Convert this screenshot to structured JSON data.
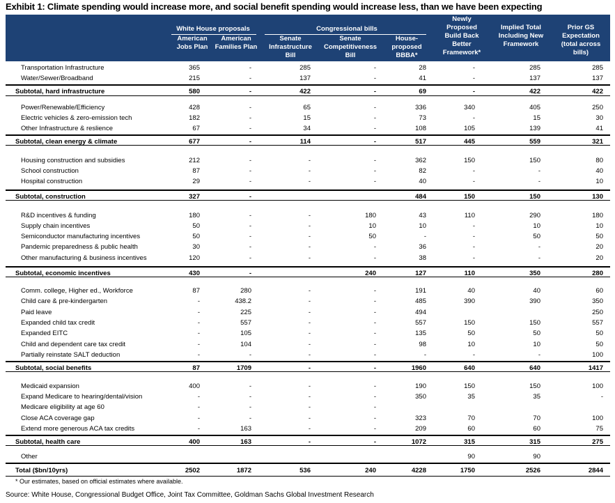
{
  "title": "Exhibit 1: Climate spending would increase more, and social benefit spending would increase less, than we have been expecting",
  "header": {
    "group_wh": "White House proposals",
    "group_cong": "Congressional bills",
    "cols": [
      "American Jobs Plan",
      "American Families Plan",
      "Senate Infrastructure Bill",
      "Senate Competitiveness Bill",
      "House-proposed BBBA*",
      "Newly Proposed Build Back Better Framework*",
      "Implied Total Including New Framework",
      "Prior GS Expectation (total across bills)"
    ]
  },
  "rows": [
    {
      "label": "Transportation Infrastructure",
      "v": [
        "365",
        "-",
        "285",
        "-",
        "28",
        "-",
        "285",
        "285"
      ]
    },
    {
      "label": "Water/Sewer/Broadband",
      "v": [
        "215",
        "-",
        "137",
        "-",
        "41",
        "-",
        "137",
        "137"
      ]
    },
    {
      "label": "Subtotal, hard infrastructure",
      "sub": true,
      "v": [
        "580",
        "-",
        "422",
        "-",
        "69",
        "-",
        "422",
        "422"
      ]
    },
    {
      "label": "Power/Renewable/Efficiency",
      "v": [
        "428",
        "-",
        "65",
        "-",
        "336",
        "340",
        "405",
        "250"
      ]
    },
    {
      "label": "Electric vehicles & zero-emission tech",
      "v": [
        "182",
        "-",
        "15",
        "-",
        "73",
        "-",
        "15",
        "30"
      ]
    },
    {
      "label": "Other Infrastructure & reslience",
      "v": [
        "67",
        "-",
        "34",
        "-",
        "108",
        "105",
        "139",
        "41"
      ]
    },
    {
      "label": "Subtotal, clean energy & climate",
      "sub": true,
      "v": [
        "677",
        "-",
        "114",
        "-",
        "517",
        "445",
        "559",
        "321"
      ]
    },
    {
      "label": "Housing construction and subsidies",
      "v": [
        "212",
        "-",
        "-",
        "-",
        "362",
        "150",
        "150",
        "80"
      ]
    },
    {
      "label": "School construction",
      "v": [
        "87",
        "-",
        "-",
        "-",
        "82",
        "-",
        "-",
        "40"
      ]
    },
    {
      "label": "Hospital construction",
      "v": [
        "29",
        "-",
        "-",
        "-",
        "40",
        "-",
        "-",
        "10"
      ]
    },
    {
      "label": "Subtotal, construction",
      "sub": true,
      "v": [
        "327",
        "-",
        "",
        "",
        "484",
        "150",
        "150",
        "130"
      ]
    },
    {
      "label": "R&D incentives & funding",
      "v": [
        "180",
        "-",
        "-",
        "180",
        "43",
        "110",
        "290",
        "180"
      ]
    },
    {
      "label": "Supply chain incentives",
      "v": [
        "50",
        "-",
        "-",
        "10",
        "10",
        "-",
        "10",
        "10"
      ]
    },
    {
      "label": "Semiconductor manufacturing incentives",
      "v": [
        "50",
        "-",
        "-",
        "50",
        "-",
        "-",
        "50",
        "50"
      ]
    },
    {
      "label": "Pandemic preparedness & public health",
      "v": [
        "30",
        "-",
        "-",
        "-",
        "36",
        "-",
        "-",
        "20"
      ]
    },
    {
      "label": "Other manufacturing & business incentives",
      "v": [
        "120",
        "-",
        "-",
        "-",
        "38",
        "-",
        "-",
        "20"
      ]
    },
    {
      "label": "Subtotal, economic incentives",
      "sub": true,
      "v": [
        "430",
        "-",
        "",
        "240",
        "127",
        "110",
        "350",
        "280"
      ]
    },
    {
      "label": "Comm. college, Higher ed., Workforce",
      "v": [
        "87",
        "280",
        "-",
        "-",
        "191",
        "40",
        "40",
        "60"
      ]
    },
    {
      "label": "Child care & pre-kindergarten",
      "v": [
        "-",
        "438.2",
        "-",
        "-",
        "485",
        "390",
        "390",
        "350"
      ]
    },
    {
      "label": "Paid leave",
      "v": [
        "-",
        "225",
        "-",
        "-",
        "494",
        "",
        "",
        "250"
      ]
    },
    {
      "label": "Expanded child tax credit",
      "v": [
        "-",
        "557",
        "-",
        "-",
        "557",
        "150",
        "150",
        "557"
      ]
    },
    {
      "label": "Expanded EITC",
      "v": [
        "-",
        "105",
        "-",
        "-",
        "135",
        "50",
        "50",
        "50"
      ]
    },
    {
      "label": "Child and dependent care tax credit",
      "v": [
        "-",
        "104",
        "-",
        "-",
        "98",
        "10",
        "10",
        "50"
      ]
    },
    {
      "label": "Partially reinstate SALT deduction",
      "v": [
        "-",
        "-",
        "-",
        "-",
        "-",
        "-",
        "-",
        "100"
      ]
    },
    {
      "label": "Subtotal, social benefits",
      "sub": true,
      "v": [
        "87",
        "1709",
        "-",
        "-",
        "1960",
        "640",
        "640",
        "1417"
      ]
    },
    {
      "label": "Medicaid expansion",
      "v": [
        "400",
        "-",
        "-",
        "-",
        "190",
        "150",
        "150",
        "100"
      ]
    },
    {
      "label": "Expand Medicare to hearing/dental/vision",
      "v": [
        "-",
        "-",
        "-",
        "-",
        "350",
        "35",
        "35",
        "-"
      ]
    },
    {
      "label": "Medicare eligibility at age 60",
      "v": [
        "-",
        "-",
        "-",
        "-",
        "",
        "",
        "",
        ""
      ]
    },
    {
      "label": "Close ACA coverage gap",
      "v": [
        "-",
        "-",
        "-",
        "-",
        "323",
        "70",
        "70",
        "100"
      ]
    },
    {
      "label": "Extend more generous ACA tax credits",
      "v": [
        "-",
        "163",
        "-",
        "-",
        "209",
        "60",
        "60",
        "75"
      ]
    },
    {
      "label": "Subtotal, health care",
      "sub": true,
      "v": [
        "400",
        "163",
        "-",
        "-",
        "1072",
        "315",
        "315",
        "275"
      ]
    },
    {
      "label": "Other",
      "v": [
        "",
        "",
        "",
        "",
        "",
        "90",
        "90",
        ""
      ]
    },
    {
      "label": "Total ($bn/10yrs)",
      "sub": true,
      "v": [
        "2502",
        "1872",
        "536",
        "240",
        "4228",
        "1750",
        "2526",
        "2844"
      ]
    }
  ],
  "footnote": "* Our estimates, based on official estimates where available.",
  "source": "Source: White House, Congressional Budget Office, Joint Tax Committee, Goldman Sachs Global Investment Research"
}
